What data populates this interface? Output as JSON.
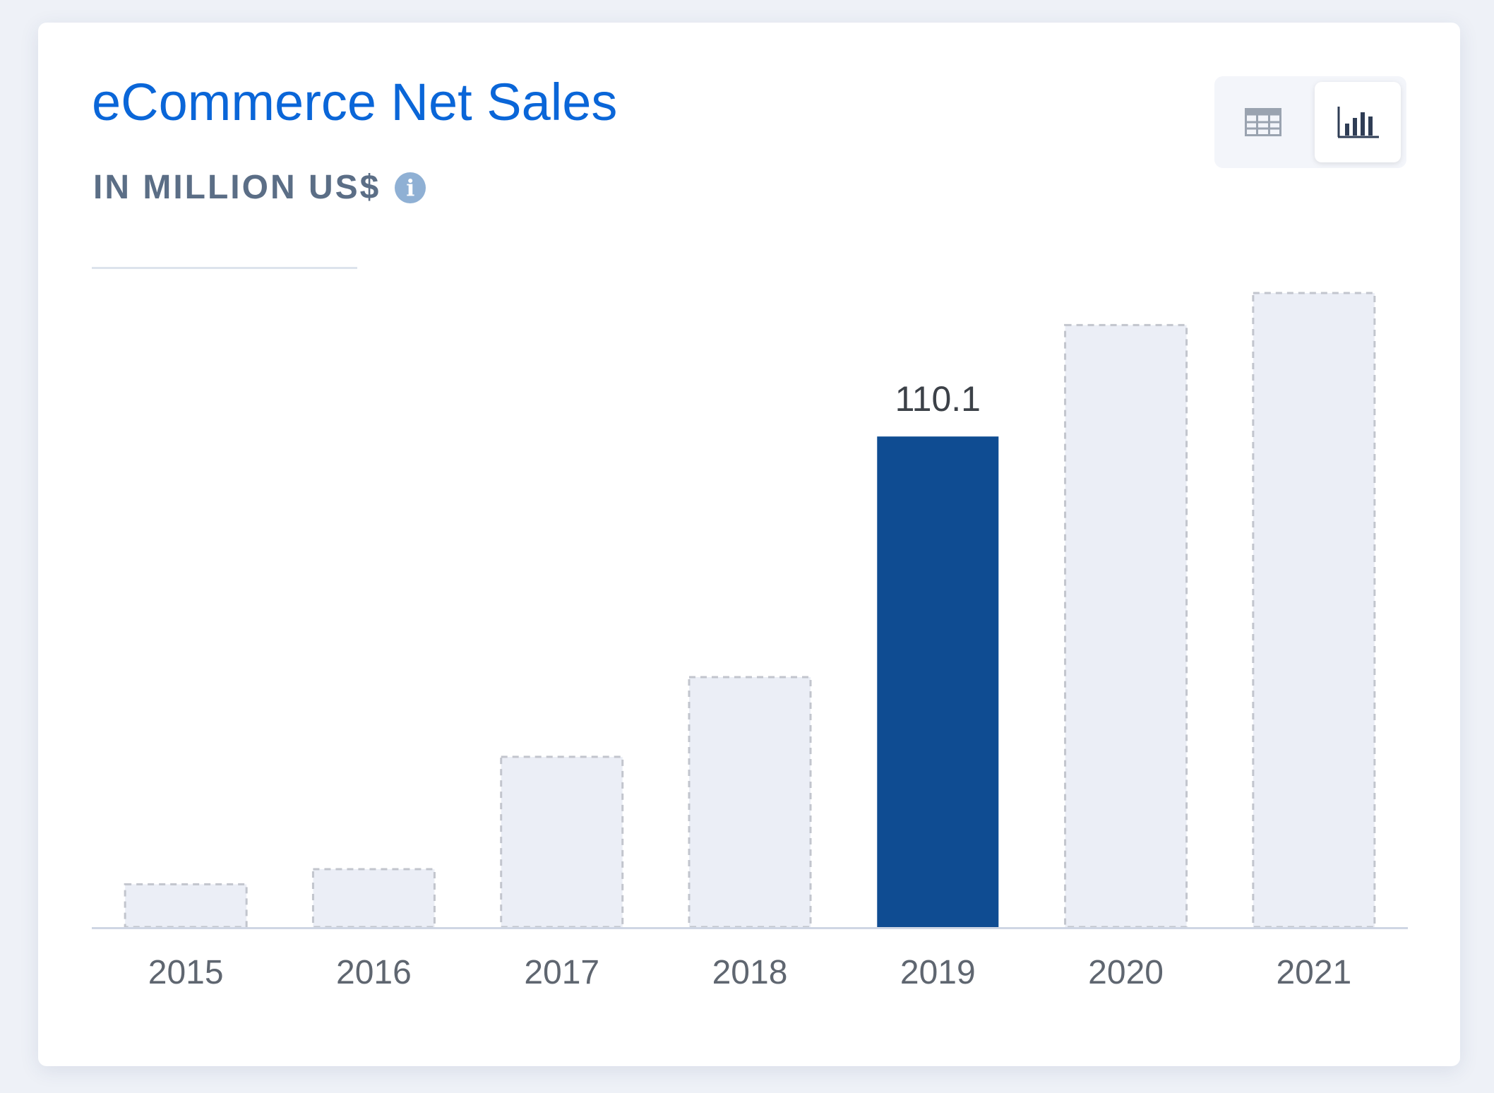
{
  "header": {
    "title": "eCommerce Net Sales",
    "subtitle": "IN MILLION US$",
    "info_icon": "info-icon"
  },
  "view_toggle": {
    "options": [
      {
        "name": "table-view",
        "icon": "table-icon",
        "selected": false
      },
      {
        "name": "chart-view",
        "icon": "bar-chart-icon",
        "selected": true
      }
    ]
  },
  "colors": {
    "title": "#0a66d8",
    "highlight_bar": "#0f4c92",
    "placeholder_bar": "#ebeef6",
    "placeholder_border": "#c2c5cd",
    "axis": "#cfd6e4"
  },
  "chart_data": {
    "type": "bar",
    "categories": [
      "2015",
      "2016",
      "2017",
      "2018",
      "2019",
      "2020",
      "2021"
    ],
    "values": [
      9.6,
      13.0,
      38.2,
      56.1,
      110.1,
      135.1,
      142.3
    ],
    "highlighted_index": 4,
    "data_labels": [
      null,
      null,
      null,
      null,
      "110.1",
      null,
      null
    ],
    "ylim": [
      0,
      160
    ],
    "grid": false,
    "legend": "none"
  }
}
